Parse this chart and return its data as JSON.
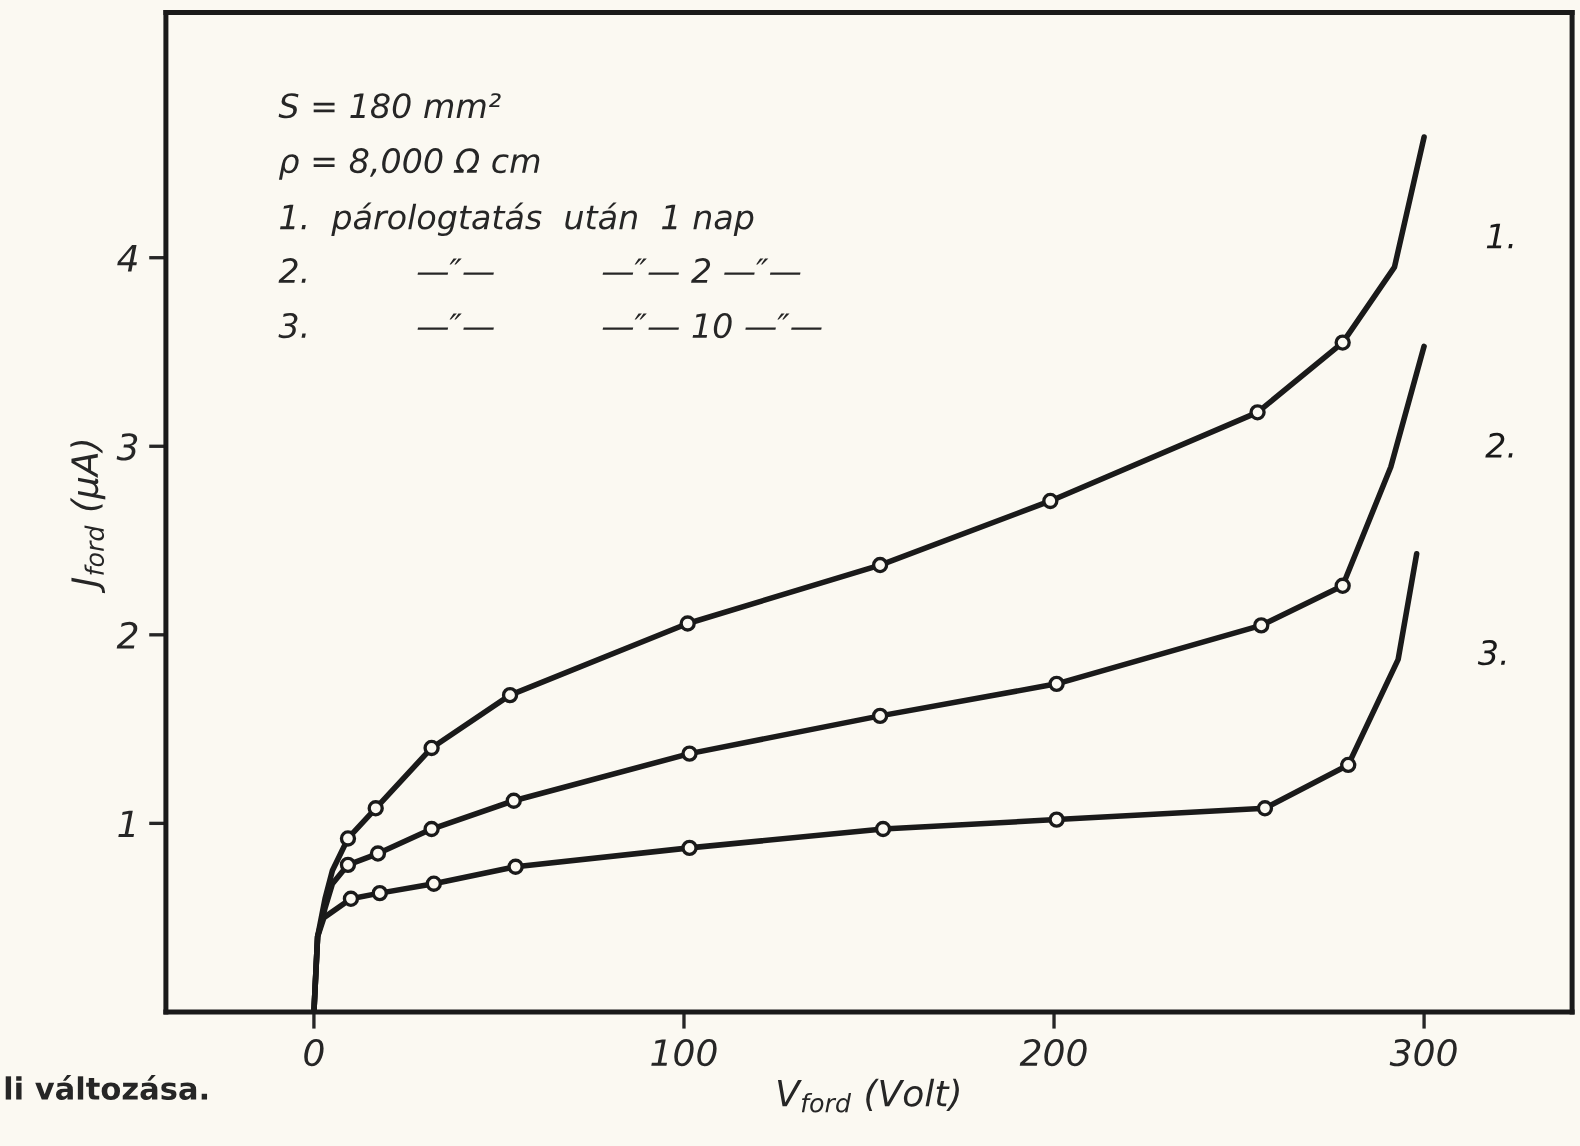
{
  "chart_data": {
    "type": "line",
    "xlabel": "V$_{ford}$ (Volt)",
    "ylabel": "J$_{ford}$ (μA)",
    "xlim": [
      -40,
      340
    ],
    "ylim": [
      0,
      5.3
    ],
    "xticks": [
      0,
      100,
      200,
      300
    ],
    "yticks": [
      1,
      2,
      3,
      4
    ],
    "grid": false,
    "legend": false,
    "line_style": "solid",
    "series": [
      {
        "name": "1.",
        "color": "#1a1a1a",
        "marker": "none",
        "x": [
          0,
          1,
          3,
          5,
          9.2,
          16.7,
          31.8,
          53,
          101,
          153,
          199,
          255,
          278,
          292,
          300
        ],
        "values": [
          0,
          0.4,
          0.6,
          0.75,
          0.92,
          1.08,
          1.4,
          1.68,
          2.06,
          2.37,
          2.71,
          3.18,
          3.55,
          3.95,
          4.64
        ]
      },
      {
        "name": "2.",
        "color": "#1a1a1a",
        "marker": "none",
        "x": [
          0,
          1,
          3,
          5,
          9.2,
          17.3,
          31.8,
          54,
          101.5,
          153,
          200.7,
          256,
          278,
          291,
          300
        ],
        "values": [
          0,
          0.4,
          0.55,
          0.68,
          0.78,
          0.84,
          0.97,
          1.12,
          1.37,
          1.57,
          1.74,
          2.05,
          2.26,
          2.89,
          3.53
        ]
      },
      {
        "name": "3.",
        "color": "#1a1a1a",
        "marker": "none",
        "x": [
          0,
          1,
          2.7,
          10,
          17.8,
          32.4,
          54.5,
          101.5,
          153.8,
          200.7,
          257,
          279.5,
          293,
          298
        ],
        "values": [
          0,
          0.4,
          0.5,
          0.6,
          0.63,
          0.68,
          0.77,
          0.87,
          0.97,
          1.02,
          1.08,
          1.31,
          1.87,
          2.43
        ]
      },
      {
        "type": "scatter",
        "color": "#1a1a1a",
        "marker": "circle",
        "x": [
          9.2,
          16.7,
          31.8,
          53,
          101,
          153,
          199,
          255,
          278
        ],
        "values": [
          0.92,
          1.08,
          1.4,
          1.68,
          2.06,
          2.37,
          2.71,
          3.18,
          3.55
        ]
      },
      {
        "type": "scatter",
        "color": "#1a1a1a",
        "marker": "circle",
        "x": [
          9.2,
          17.3,
          31.8,
          54,
          101.5,
          153,
          200.7,
          256,
          278
        ],
        "values": [
          0.78,
          0.84,
          0.97,
          1.12,
          1.37,
          1.57,
          1.74,
          2.05,
          2.26
        ]
      },
      {
        "type": "scatter",
        "color": "#1a1a1a",
        "marker": "circle",
        "x": [
          10,
          17.8,
          32.4,
          54.5,
          101.5,
          153.8,
          200.7,
          257,
          279.5
        ],
        "values": [
          0.6,
          0.63,
          0.68,
          0.77,
          0.87,
          0.97,
          1.02,
          1.08,
          1.31
        ]
      }
    ],
    "annotations": [
      "S = 180 mm²",
      "ρ = 8,000 Ω cm",
      "1.  párologtatás  után  1 nap",
      "2.          —″—          —″— 2 —″—",
      "3.          —″—          —″— 10 —″—",
      "li változása."
    ]
  }
}
